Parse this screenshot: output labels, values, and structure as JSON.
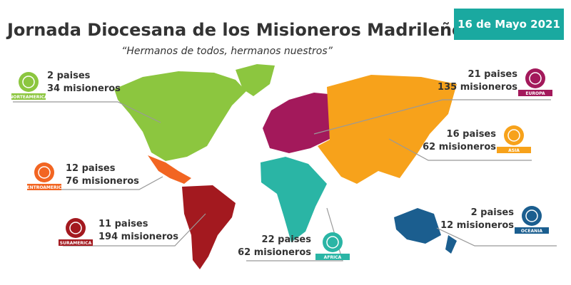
{
  "header": {
    "title": "Jornada Diocesana de los Misioneros Madrileños",
    "subtitle": "“Hermanos de todos, hermanos nuestros”",
    "date": "16 de Mayo 2021"
  },
  "regions": [
    {
      "badge": "NORTEAMERICA",
      "countries": "2 paises",
      "missionaries": "34 misioneros"
    },
    {
      "badge": "CENTROAMERICA",
      "countries": "12 paises",
      "missionaries": "76 misioneros"
    },
    {
      "badge": "SURAMERICA",
      "countries": "11 paises",
      "missionaries": "194 misioneros"
    },
    {
      "badge": "AFRICA",
      "countries": "22 paises",
      "missionaries": "62 misioneros"
    },
    {
      "badge": "OCEANIA",
      "countries": "2 paises",
      "missionaries": "12 misioneros"
    },
    {
      "badge": "ASIA",
      "countries": "16 paises",
      "missionaries": "62 misioneros"
    },
    {
      "badge": "EUROPA",
      "countries": "21 paises",
      "missionaries": "135 misioneros"
    }
  ]
}
